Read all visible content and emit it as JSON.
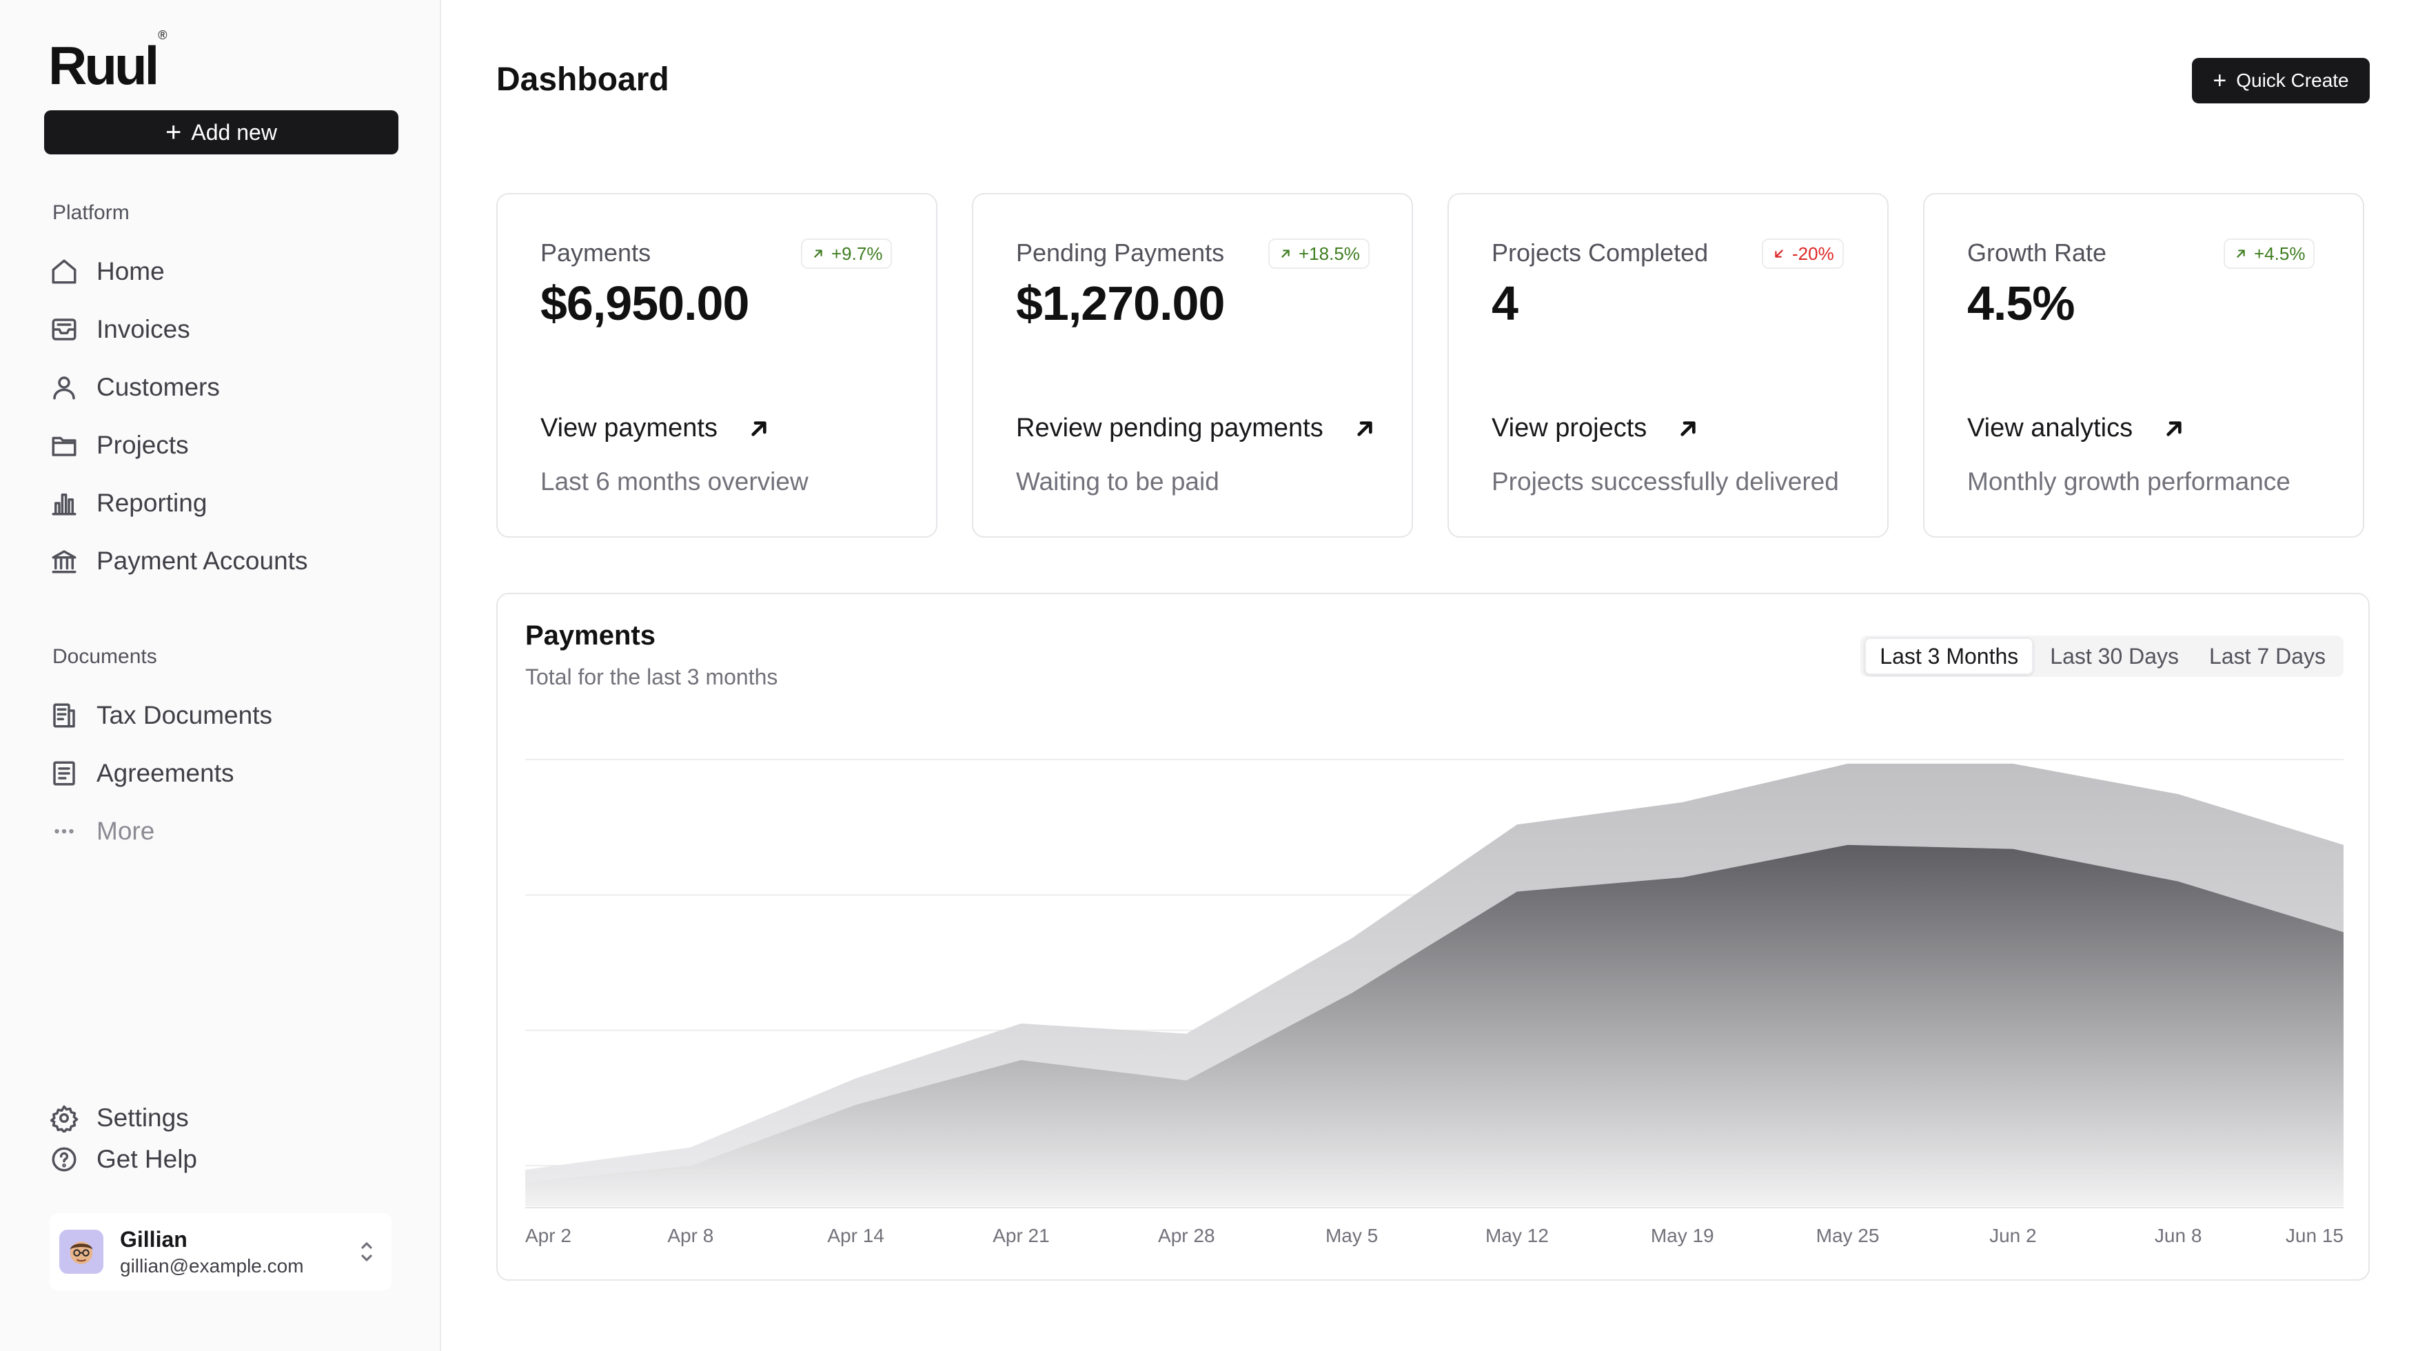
{
  "app": {
    "logo": "Ruul",
    "logo_mark": "®",
    "page_title": "Dashboard"
  },
  "sidebar": {
    "add_new": "Add new",
    "sections": {
      "platform": "Platform",
      "documents": "Documents"
    },
    "platform_items": [
      {
        "label": "Home",
        "icon": "home-icon"
      },
      {
        "label": "Invoices",
        "icon": "inbox-icon"
      },
      {
        "label": "Customers",
        "icon": "user-icon"
      },
      {
        "label": "Projects",
        "icon": "folder-icon"
      },
      {
        "label": "Reporting",
        "icon": "bar-chart-icon"
      },
      {
        "label": "Payment Accounts",
        "icon": "bank-icon"
      }
    ],
    "document_items": [
      {
        "label": "Tax Documents",
        "icon": "tax-document-icon"
      },
      {
        "label": "Agreements",
        "icon": "agreement-icon"
      },
      {
        "label": "More",
        "icon": "ellipsis-icon"
      }
    ],
    "footer_items": [
      {
        "label": "Settings",
        "icon": "settings-icon"
      },
      {
        "label": "Get Help",
        "icon": "help-icon"
      }
    ],
    "user": {
      "name": "Gillian",
      "email": "gillian@example.com"
    }
  },
  "header": {
    "quick_create": "Quick Create"
  },
  "cards": [
    {
      "label": "Payments",
      "value": "$6,950.00",
      "badge": "+9.7%",
      "trend": "up",
      "link": "View payments",
      "sub": "Last 6 months overview"
    },
    {
      "label": "Pending Payments",
      "value": "$1,270.00",
      "badge": "+18.5%",
      "trend": "up",
      "link": "Review pending payments",
      "sub": "Waiting to be paid"
    },
    {
      "label": "Projects Completed",
      "value": "4",
      "badge": "-20%",
      "trend": "down",
      "link": "View projects",
      "sub": "Projects successfully delivered"
    },
    {
      "label": "Growth Rate",
      "value": "4.5%",
      "badge": "+4.5%",
      "trend": "up",
      "link": "View analytics",
      "sub": "Monthly growth performance"
    }
  ],
  "chart_panel": {
    "title": "Payments",
    "subtitle": "Total for the last 3 months",
    "ranges": [
      "Last 3 Months",
      "Last 30 Days",
      "Last 7 Days"
    ],
    "active_range": "Last 3 Months"
  },
  "chart_data": {
    "type": "area",
    "x": [
      "Apr 2",
      "Apr 8",
      "Apr 14",
      "Apr 21",
      "Apr 28",
      "May 5",
      "May 12",
      "May 19",
      "May 25",
      "Jun 2",
      "Jun 8",
      "Jun 15"
    ],
    "series": [
      {
        "values": [
          12,
          20,
          50,
          72,
          62,
          105,
          155,
          162,
          178,
          176,
          160,
          135
        ],
        "color": "#6b6b6f"
      },
      {
        "values": [
          6,
          9,
          13,
          18,
          23,
          27,
          33,
          37,
          40,
          42,
          43,
          43
        ],
        "color": "#c9c9cc"
      }
    ],
    "stacked": true,
    "ylim": [
      0,
      220
    ],
    "grid": "horizontal",
    "xlabel": "",
    "ylabel": ""
  }
}
